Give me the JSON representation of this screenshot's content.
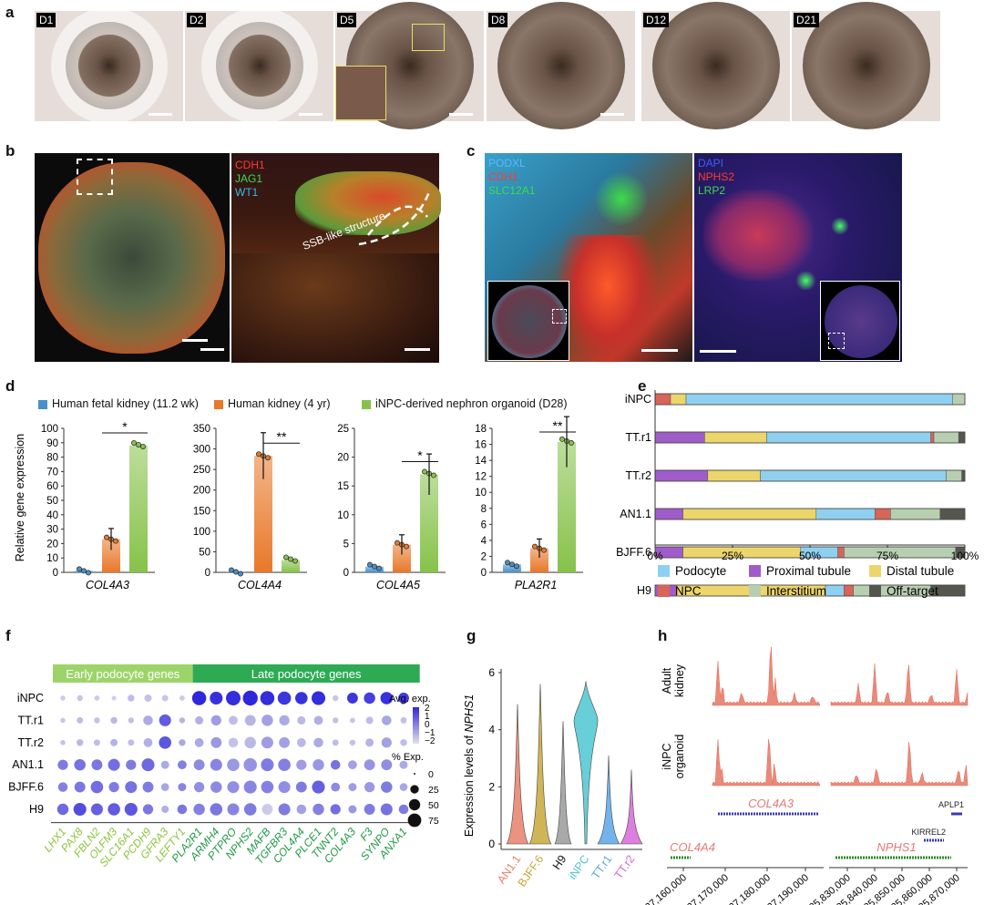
{
  "panels": {
    "a": "a",
    "b": "b",
    "c": "c",
    "d": "d",
    "e": "e",
    "f": "f",
    "g": "g",
    "h": "h"
  },
  "panel_a": {
    "days": [
      "D1",
      "D2",
      "D5",
      "D8",
      "D12",
      "D21"
    ]
  },
  "panel_b": {
    "stains": [
      {
        "label": "CDH1",
        "color": "#ff3b30"
      },
      {
        "label": "JAG1",
        "color": "#3ddc4a"
      },
      {
        "label": "WT1",
        "color": "#38b6e8"
      }
    ],
    "annotation": "SSB-like structure"
  },
  "panel_c": {
    "left_stains": [
      {
        "label": "PODXL",
        "color": "#5ab8ff"
      },
      {
        "label": "CDH1",
        "color": "#ff3b30"
      },
      {
        "label": "SLC12A1",
        "color": "#3ddc4a"
      }
    ],
    "right_stains": [
      {
        "label": "DAPI",
        "color": "#3d5cff"
      },
      {
        "label": "NPHS2",
        "color": "#ff3b30"
      },
      {
        "label": "LRP2",
        "color": "#3ddc4a"
      }
    ]
  },
  "panel_d": {
    "legend": [
      {
        "label": "Human fetal kidney (11.2 wk)",
        "color": "#4a90c8"
      },
      {
        "label": "Human kidney (4 yr)",
        "color": "#e8782a"
      },
      {
        "label": "iNPC-derived nephron organoid (D28)",
        "color": "#86c24a"
      }
    ],
    "ylabel": "Relative gene expression"
  },
  "panel_e": {
    "xticks": [
      "0%",
      "25%",
      "50%",
      "75%",
      "100%"
    ],
    "legend": [
      {
        "label": "Podocyte",
        "color": "#8fd0f0"
      },
      {
        "label": "Proximal tubule",
        "color": "#a05cc8"
      },
      {
        "label": "Distal tubule",
        "color": "#ecd56a"
      },
      {
        "label": "NPC",
        "color": "#d9645a"
      },
      {
        "label": "Interstitium",
        "color": "#b7cfb0"
      },
      {
        "label": "Off-target",
        "color": "#55574f"
      }
    ]
  },
  "panel_f": {
    "early_header": "Early podocyte genes",
    "late_header": "Late podocyte genes",
    "avg_title": "Avg. exp.",
    "avg_ticks": [
      "2",
      "1",
      "0",
      "−1",
      "−2"
    ],
    "pct_title": "% Exp.",
    "pct_ticks": [
      "0",
      "25",
      "50",
      "75"
    ]
  },
  "panel_g": {
    "ylabel_prefix": "Expression levels of ",
    "ylabel_gene": "NPHS1"
  },
  "panel_h": {
    "track_labels": [
      [
        "Adult",
        "kidney"
      ],
      [
        "iNPC",
        "organoid"
      ]
    ],
    "genes": [
      {
        "label": "COL4A3",
        "color": "#e87878"
      },
      {
        "label": "APLP1",
        "color": "#222222"
      },
      {
        "label": "KIRREL2",
        "color": "#222222"
      },
      {
        "label": "COL4A4",
        "color": "#e87878"
      },
      {
        "label": "NPHS1",
        "color": "#e87878"
      }
    ],
    "left_ticks": [
      "227,160,000",
      "227,170,000",
      "227,180,000",
      "227,190,000"
    ],
    "right_ticks": [
      "35,830,000",
      "35,840,000",
      "35,850,000",
      "35,860,000",
      "35,870,000"
    ]
  },
  "chart_data": [
    {
      "type": "bar",
      "panel": "d",
      "ylabel": "Relative gene expression",
      "subplots": [
        {
          "gene": "COL4A3",
          "ylim": [
            0,
            100
          ],
          "yticks": [
            0,
            10,
            20,
            30,
            40,
            50,
            60,
            70,
            80,
            90,
            100
          ],
          "series": [
            {
              "name": "Human fetal kidney (11.2 wk)",
              "value": 1
            },
            {
              "name": "Human kidney (4 yr)",
              "value": 23
            },
            {
              "name": "iNPC-derived nephron organoid (D28)",
              "value": 88
            }
          ],
          "significance": "*"
        },
        {
          "gene": "COL4A4",
          "ylim": [
            0,
            350
          ],
          "yticks": [
            0,
            50,
            100,
            150,
            200,
            250,
            300,
            350
          ],
          "series": [
            {
              "name": "Human fetal kidney (11.2 wk)",
              "value": 1
            },
            {
              "name": "Human kidney (4 yr)",
              "value": 283
            },
            {
              "name": "iNPC-derived nephron organoid (D28)",
              "value": 30
            }
          ],
          "significance": "**"
        },
        {
          "gene": "COL4A5",
          "ylim": [
            0,
            25
          ],
          "yticks": [
            0,
            5,
            10,
            15,
            20,
            25
          ],
          "series": [
            {
              "name": "Human fetal kidney (11.2 wk)",
              "value": 1
            },
            {
              "name": "Human kidney (4 yr)",
              "value": 4.8
            },
            {
              "name": "iNPC-derived nephron organoid (D28)",
              "value": 17
            }
          ],
          "significance": "*"
        },
        {
          "gene": "PLA2R1",
          "ylim": [
            0,
            18
          ],
          "yticks": [
            0,
            2,
            4,
            6,
            8,
            10,
            12,
            14,
            16,
            18
          ],
          "series": [
            {
              "name": "Human fetal kidney (11.2 wk)",
              "value": 1
            },
            {
              "name": "Human kidney (4 yr)",
              "value": 3
            },
            {
              "name": "iNPC-derived nephron organoid (D28)",
              "value": 16.3
            }
          ],
          "significance": "**"
        }
      ]
    },
    {
      "type": "bar",
      "panel": "e",
      "orientation": "horizontal-stacked",
      "categories": [
        "iNPC",
        "TT.r1",
        "TT.r2",
        "AN1.1",
        "BJFF.6",
        "H9"
      ],
      "series": [
        {
          "name": "Proximal tubule",
          "values": [
            0,
            16,
            17,
            9,
            9,
            7
          ]
        },
        {
          "name": "NPC",
          "values": [
            5,
            0,
            0,
            0,
            0,
            0
          ]
        },
        {
          "name": "Distal tubule",
          "values": [
            5,
            20,
            17,
            43,
            38,
            48
          ]
        },
        {
          "name": "Podocyte",
          "values": [
            86,
            53,
            60,
            19,
            12,
            6
          ]
        },
        {
          "name": "NPC",
          "values": [
            0,
            1,
            0,
            5,
            2,
            3
          ]
        },
        {
          "name": "Interstitium",
          "values": [
            4,
            8,
            5,
            16,
            36,
            25
          ]
        },
        {
          "name": "Off-target",
          "values": [
            0,
            2,
            1,
            8,
            3,
            11
          ]
        }
      ],
      "xlim": [
        0,
        100
      ]
    },
    {
      "type": "scatter",
      "panel": "f",
      "subtype": "dotplot",
      "rows": [
        "iNPC",
        "TT.r1",
        "TT.r2",
        "AN1.1",
        "BJFF.6",
        "H9"
      ],
      "genes": [
        "LHX1",
        "PAX8",
        "FBLN2",
        "OLFM3",
        "SLC16A1",
        "PCDH9",
        "GFRA3",
        "LEFTY1",
        "PLA2R1",
        "ARMH4",
        "PTPRO",
        "NPHS2",
        "MAFB",
        "TGFBR3",
        "COL4A4",
        "PLCE1",
        "TNNT2",
        "COL4A3",
        "F3",
        "SYNPO",
        "ANXA1"
      ],
      "early_count": 8,
      "avg_exp": [
        [
          -1.5,
          -1.4,
          -1.5,
          -1.6,
          -1.2,
          -1.3,
          -1.4,
          -1.5,
          2,
          1.8,
          1.9,
          2,
          1.9,
          1.7,
          1.8,
          1.9,
          -1.4,
          1.7,
          1.5,
          1.8,
          1.6
        ],
        [
          -1.4,
          -1.2,
          -1.3,
          -1.1,
          -1.3,
          -0.8,
          0.9,
          -1.0,
          -0.9,
          -0.5,
          -1.2,
          -1.0,
          -0.6,
          -0.8,
          -1.1,
          -0.9,
          -1.3,
          -1.4,
          -1.2,
          -0.7,
          -1.3
        ],
        [
          -1.3,
          -1.1,
          -1.2,
          -1.0,
          -1.2,
          -0.9,
          1.0,
          -0.8,
          -0.8,
          -0.4,
          -1.3,
          -1.1,
          -0.5,
          -0.6,
          -1.1,
          -0.8,
          -1.2,
          -1.3,
          -1.0,
          -0.6,
          -1.2
        ],
        [
          0.2,
          0.4,
          0.3,
          0.5,
          0.2,
          0.6,
          -0.8,
          0.1,
          -0.1,
          0.0,
          -0.4,
          -0.3,
          0.2,
          0.1,
          -0.5,
          -0.4,
          0.4,
          -0.6,
          -0.3,
          -0.2,
          -0.8
        ],
        [
          0.1,
          0.3,
          0.5,
          0.2,
          0.4,
          0.2,
          -0.7,
          0.0,
          -0.2,
          -0.1,
          -0.2,
          0.0,
          0.1,
          -0.2,
          0.2,
          0.8,
          -0.1,
          -0.5,
          -0.4,
          0.2,
          -0.7
        ],
        [
          0.6,
          1.2,
          0.8,
          0.9,
          1.0,
          0.3,
          -0.9,
          0.3,
          0.1,
          0.3,
          0.0,
          0.2,
          -1.5,
          0.2,
          -0.6,
          0.1,
          0.5,
          -0.4,
          0.2,
          0.4,
          0.2
        ]
      ],
      "pct_exp": [
        [
          5,
          8,
          6,
          4,
          12,
          15,
          10,
          6,
          75,
          60,
          80,
          85,
          75,
          65,
          55,
          70,
          8,
          40,
          45,
          55,
          40
        ],
        [
          5,
          10,
          8,
          12,
          8,
          30,
          50,
          8,
          20,
          35,
          25,
          40,
          45,
          35,
          20,
          25,
          8,
          6,
          15,
          30,
          10
        ],
        [
          5,
          12,
          10,
          15,
          10,
          25,
          55,
          12,
          25,
          40,
          30,
          45,
          50,
          40,
          25,
          30,
          10,
          8,
          20,
          35,
          12
        ],
        [
          35,
          45,
          40,
          50,
          35,
          60,
          20,
          25,
          40,
          50,
          55,
          65,
          60,
          55,
          35,
          45,
          30,
          25,
          40,
          40,
          20
        ],
        [
          30,
          40,
          55,
          35,
          50,
          40,
          18,
          20,
          35,
          45,
          50,
          60,
          55,
          50,
          40,
          60,
          25,
          20,
          35,
          45,
          18
        ],
        [
          45,
          60,
          50,
          55,
          60,
          35,
          15,
          30,
          45,
          55,
          50,
          55,
          40,
          50,
          30,
          45,
          35,
          20,
          40,
          50,
          30
        ]
      ]
    },
    {
      "type": "area",
      "panel": "g",
      "subtype": "violin",
      "categories": [
        "AN1.1",
        "BJFF.6",
        "H9",
        "iNPC",
        "TT.r1",
        "TT.r2"
      ],
      "colors": [
        "#e8806a",
        "#c8a83a",
        "#9a9a9a",
        "#4ec6d0",
        "#5aa6e8",
        "#d768d8"
      ],
      "max_values": [
        4.9,
        5.6,
        4.3,
        5.7,
        3.1,
        2.6
      ],
      "modes": [
        0.1,
        0.1,
        0,
        4.3,
        0.1,
        0.2
      ],
      "ylim": [
        0,
        6
      ],
      "yticks": [
        0,
        2,
        4,
        6
      ]
    },
    {
      "type": "area",
      "panel": "h",
      "subtype": "genome-track",
      "tracks": [
        "Adult kidney",
        "iNPC organoid"
      ]
    }
  ]
}
